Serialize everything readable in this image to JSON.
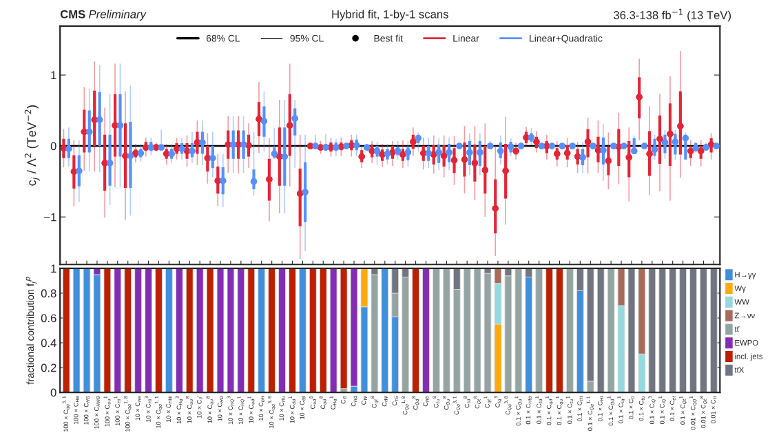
{
  "chart_data": [
    {
      "type": "scatter",
      "title": "Hybrid fit, 1-by-1 scans",
      "ylabel": "c$_{j}$ / Λ$^{2}$ (TeV$^{−2}$)",
      "annotations": [
        "68% CL",
        "95% CL",
        "Best fit",
        "CMS",
        "Preliminary",
        "36.3-138 fb$^{−1}$ (13 TeV)"
      ],
      "categories": [
        null,
        null,
        null,
        null,
        null,
        null,
        null,
        null,
        null,
        null,
        null,
        null,
        null,
        null,
        null,
        null,
        null,
        null,
        null,
        null,
        null,
        null,
        null,
        null,
        null,
        null,
        null,
        null,
        null,
        null,
        null,
        null,
        null,
        null,
        null,
        null,
        null,
        null,
        null,
        null,
        null,
        null,
        null,
        null,
        null,
        null,
        null,
        null,
        null,
        null,
        null,
        null,
        null,
        null,
        null,
        null,
        null,
        null,
        null,
        null,
        null,
        null,
        null,
        null
      ],
      "ylim": [
        -1.67,
        1.69
      ],
      "yticks": [
        {
          "value": -1,
          "label": "−1"
        },
        0,
        1
      ],
      "tick_labels": "y",
      "legend": "top",
      "marker": "circle",
      "ref_lines": [
        {
          "axis": "y",
          "value": 0,
          "color": "#000000"
        }
      ],
      "series": [
        {
          "color": "#e42536",
          "values": [
            -0.03,
            -0.36,
            0.2,
            0.37,
            -0.24,
            0.29,
            -0.14,
            -0.1,
            -0.02,
            -0.02,
            -0.11,
            -0.04,
            -0.07,
            0.05,
            -0.17,
            -0.49,
            0.02,
            0.02,
            0.01,
            0.38,
            -0.47,
            -0.15,
            0.29,
            -0.67,
            0.0,
            -0.02,
            -0.02,
            -0.01,
            0.01,
            -0.15,
            -0.07,
            -0.12,
            -0.09,
            -0.12,
            0.06,
            -0.1,
            -0.12,
            -0.14,
            -0.2,
            -0.19,
            -0.24,
            -0.34,
            -0.88,
            -0.35,
            -0.07,
            0.12,
            0.06,
            0.0,
            -0.11,
            -0.1,
            -0.15,
            0.06,
            -0.06,
            -0.21,
            -0.01,
            -0.16,
            0.69,
            -0.11,
            0.1,
            0.17,
            0.28,
            -0.07,
            -0.07,
            0.02
          ],
          "errors": [
            [
              -0.3,
              0.24
            ],
            [
              -0.85,
              0.08
            ],
            [
              -0.35,
              0.83
            ],
            [
              -0.36,
              1.19
            ],
            [
              -1.01,
              0.54
            ],
            [
              -0.58,
              1.16
            ],
            [
              -1.04,
              0.77
            ],
            [
              -0.23,
              0.03
            ],
            [
              -0.15,
              0.12
            ],
            [
              -0.08,
              0.05
            ],
            [
              -0.26,
              0.03
            ],
            [
              -0.19,
              0.11
            ],
            [
              -0.29,
              0.15
            ],
            [
              -0.27,
              0.36
            ],
            [
              -0.53,
              0.18
            ],
            [
              -0.85,
              -0.11
            ],
            [
              -0.38,
              0.42
            ],
            [
              -0.39,
              0.42
            ],
            [
              -0.31,
              0.32
            ],
            [
              -0.1,
              0.9
            ],
            [
              -1.06,
              0.11
            ],
            [
              -0.95,
              0.65
            ],
            [
              -0.57,
              1.16
            ],
            [
              -1.59,
              0.16
            ],
            [
              -0.04,
              0.04
            ],
            [
              -0.11,
              0.07
            ],
            [
              -0.15,
              0.11
            ],
            [
              -0.14,
              0.12
            ],
            [
              -0.15,
              0.16
            ],
            [
              -0.31,
              0.0
            ],
            [
              -0.24,
              0.07
            ],
            [
              -0.3,
              0.03
            ],
            [
              -0.28,
              0.07
            ],
            [
              -0.31,
              0.08
            ],
            [
              -0.14,
              0.26
            ],
            [
              -0.33,
              0.12
            ],
            [
              -0.39,
              0.15
            ],
            [
              -0.44,
              0.15
            ],
            [
              -0.55,
              0.14
            ],
            [
              -0.67,
              0.28
            ],
            [
              -0.76,
              0.28
            ],
            [
              -1.0,
              0.32
            ],
            [
              -1.55,
              0.0
            ],
            [
              -1.11,
              0.41
            ],
            [
              -0.19,
              0.05
            ],
            [
              0.0,
              0.27
            ],
            [
              -0.09,
              0.21
            ],
            [
              -0.19,
              0.16
            ],
            [
              -0.29,
              0.07
            ],
            [
              -0.3,
              0.11
            ],
            [
              -0.38,
              0.06
            ],
            [
              -0.39,
              0.4
            ],
            [
              -0.38,
              0.36
            ],
            [
              -0.61,
              0.19
            ],
            [
              -0.54,
              0.47
            ],
            [
              -0.78,
              0.26
            ],
            [
              0.08,
              1.23
            ],
            [
              -0.69,
              0.56
            ],
            [
              -0.64,
              0.73
            ],
            [
              -0.77,
              0.98
            ],
            [
              -0.45,
              1.34
            ],
            [
              -0.28,
              0.08
            ],
            [
              -0.29,
              0.08
            ],
            [
              -0.19,
              0.18
            ]
          ]
        },
        {
          "name": "Linear",
          "color": "#e42536",
          "values": [
            -0.03,
            -0.36,
            0.2,
            0.37,
            -0.24,
            0.29,
            -0.14,
            -0.1,
            -0.02,
            -0.02,
            -0.11,
            -0.04,
            -0.07,
            0.05,
            -0.17,
            -0.49,
            0.02,
            0.02,
            0.01,
            0.38,
            -0.47,
            -0.15,
            0.29,
            -0.67,
            0.0,
            -0.02,
            -0.02,
            -0.01,
            0.01,
            -0.15,
            -0.07,
            -0.12,
            -0.09,
            -0.12,
            0.06,
            -0.1,
            -0.12,
            -0.14,
            -0.2,
            -0.19,
            -0.24,
            -0.34,
            -0.88,
            -0.35,
            -0.07,
            0.12,
            0.06,
            0.0,
            -0.11,
            -0.1,
            -0.15,
            0.06,
            -0.06,
            -0.21,
            -0.01,
            -0.16,
            0.69,
            -0.11,
            0.1,
            0.17,
            0.28,
            -0.07,
            -0.07,
            0.02
          ],
          "errors": [
            [
              -0.17,
              0.1
            ],
            [
              -0.6,
              -0.13
            ],
            [
              -0.09,
              0.51
            ],
            [
              0.0,
              0.78
            ],
            [
              -0.63,
              0.16
            ],
            [
              -0.15,
              0.73
            ],
            [
              -0.59,
              0.32
            ],
            [
              -0.16,
              -0.05
            ],
            [
              -0.07,
              0.06
            ],
            [
              -0.04,
              0.01
            ],
            [
              -0.18,
              -0.04
            ],
            [
              -0.11,
              0.04
            ],
            [
              -0.18,
              0.04
            ],
            [
              -0.11,
              0.2
            ],
            [
              -0.36,
              0.0
            ],
            [
              -0.67,
              -0.29
            ],
            [
              -0.18,
              0.22
            ],
            [
              -0.18,
              0.22
            ],
            [
              -0.15,
              0.16
            ],
            [
              0.14,
              0.62
            ],
            [
              -0.77,
              -0.18
            ],
            [
              -0.56,
              0.26
            ],
            [
              -0.14,
              0.73
            ],
            [
              -1.13,
              -0.32
            ],
            [
              -0.03,
              0.03
            ],
            [
              -0.05,
              0.02
            ],
            [
              -0.08,
              0.05
            ],
            [
              -0.06,
              0.05
            ],
            [
              -0.06,
              0.08
            ],
            [
              -0.23,
              -0.06
            ],
            [
              -0.16,
              0.02
            ],
            [
              -0.21,
              -0.05
            ],
            [
              -0.18,
              0.0
            ],
            [
              -0.21,
              -0.04
            ],
            [
              -0.04,
              0.16
            ],
            [
              -0.21,
              0.0
            ],
            [
              -0.26,
              0.01
            ],
            [
              -0.29,
              0.01
            ],
            [
              -0.38,
              -0.03
            ],
            [
              -0.43,
              0.05
            ],
            [
              -0.5,
              0.02
            ],
            [
              -0.67,
              0.0
            ],
            [
              -1.23,
              -0.47
            ],
            [
              -0.74,
              0.03
            ],
            [
              -0.12,
              -0.03
            ],
            [
              0.04,
              0.2
            ],
            [
              -0.03,
              0.13
            ],
            [
              -0.1,
              0.07
            ],
            [
              -0.19,
              -0.03
            ],
            [
              -0.19,
              0.01
            ],
            [
              -0.26,
              -0.04
            ],
            [
              -0.16,
              0.24
            ],
            [
              -0.23,
              0.13
            ],
            [
              -0.41,
              -0.01
            ],
            [
              -0.28,
              0.24
            ],
            [
              -0.44,
              0.07
            ],
            [
              0.39,
              0.97
            ],
            [
              -0.42,
              0.21
            ],
            [
              -0.25,
              0.43
            ],
            [
              -0.28,
              0.6
            ],
            [
              -0.12,
              0.77
            ],
            [
              -0.17,
              -0.02
            ],
            [
              -0.18,
              0.0
            ],
            [
              -0.09,
              0.11
            ]
          ]
        },
        {
          "color": "#5790fc",
          "values": [
            -0.04,
            -0.35,
            0.2,
            0.37,
            -0.24,
            0.29,
            -0.14,
            -0.1,
            -0.02,
            -0.02,
            -0.11,
            -0.04,
            -0.07,
            0.05,
            -0.17,
            -0.49,
            0.02,
            0.02,
            -0.5,
            0.35,
            -0.11,
            -0.15,
            0.39,
            -0.65,
            0.0,
            -0.02,
            -0.02,
            0.0,
            0.01,
            -0.02,
            -0.07,
            -0.11,
            -0.07,
            -0.09,
            0.11,
            -0.1,
            -0.09,
            -0.09,
            0.0,
            -0.09,
            -0.09,
            0.0,
            -0.07,
            -0.01,
            0.0,
            0.12,
            0.0,
            0.0,
            0.0,
            0.0,
            -0.16,
            0.0,
            -0.06,
            0.0,
            0.0,
            -0.07,
            0.0,
            -0.05,
            0.05,
            0.06,
            0.11,
            -0.03,
            -0.02,
            0.0
          ],
          "errors": [
            [
              -0.29,
              0.26
            ],
            [
              -0.79,
              0.08
            ],
            [
              -0.36,
              0.81
            ],
            [
              -0.37,
              1.14
            ],
            [
              -0.83,
              0.73
            ],
            [
              -0.58,
              1.16
            ],
            [
              -0.98,
              0.85
            ],
            [
              -0.22,
              0.03
            ],
            [
              -0.13,
              0.12
            ],
            [
              -0.05,
              0.23
            ],
            [
              -0.24,
              0.03
            ],
            [
              -0.19,
              0.11
            ],
            [
              -0.24,
              0.2
            ],
            [
              -0.27,
              0.36
            ],
            [
              -0.44,
              0.2
            ],
            [
              -0.86,
              -0.11
            ],
            [
              -0.38,
              0.42
            ],
            [
              -0.38,
              0.42
            ],
            [
              -0.7,
              0.2
            ],
            [
              -0.08,
              0.77
            ],
            [
              -0.18,
              0.25
            ],
            [
              -0.95,
              0.65
            ],
            [
              -0.31,
              0.65
            ],
            [
              -1.48,
              0.16
            ],
            [
              -0.05,
              0.16
            ],
            [
              -0.07,
              0.17
            ],
            [
              -0.14,
              0.1
            ],
            [
              -0.03,
              0.03
            ],
            [
              -0.14,
              0.16
            ],
            [
              -0.06,
              0.03
            ],
            [
              -0.26,
              0.06
            ],
            [
              -0.26,
              0.03
            ],
            [
              -0.19,
              0.07
            ],
            [
              -0.29,
              0.07
            ],
            [
              -0.08,
              0.19
            ],
            [
              -0.31,
              0.12
            ],
            [
              -0.34,
              0.11
            ],
            [
              -0.34,
              0.12
            ],
            [
              -0.04,
              0.04
            ],
            [
              -0.41,
              0.18
            ],
            [
              -0.41,
              0.18
            ],
            [
              -0.04,
              0.07
            ],
            [
              -0.26,
              0.15
            ],
            [
              -0.14,
              0.11
            ],
            [
              -0.04,
              0.03
            ],
            [
              0.01,
              0.25
            ],
            [
              -0.03,
              0.03
            ],
            [
              -0.03,
              0.03
            ],
            [
              -0.03,
              0.03
            ],
            [
              -0.03,
              0.03
            ],
            [
              -0.38,
              0.06
            ],
            [
              -0.03,
              0.03
            ],
            [
              -0.49,
              0.31
            ],
            [
              -0.03,
              0.03
            ],
            [
              -0.03,
              0.03
            ],
            [
              -0.11,
              0.15
            ],
            [
              -0.03,
              0.03
            ],
            [
              -0.19,
              0.16
            ],
            [
              -0.18,
              0.23
            ],
            [
              -0.19,
              0.23
            ],
            [
              -0.19,
              0.19
            ],
            [
              -0.09,
              0.06
            ],
            [
              -0.07,
              0.05
            ],
            [
              -0.04,
              0.04
            ]
          ]
        },
        {
          "name": "Linear+Quadratic",
          "color": "#5790fc",
          "values": [
            -0.04,
            -0.35,
            0.2,
            0.37,
            -0.24,
            0.29,
            -0.14,
            -0.1,
            -0.02,
            -0.02,
            -0.11,
            -0.04,
            -0.07,
            0.05,
            -0.17,
            -0.49,
            0.02,
            0.02,
            -0.5,
            0.35,
            -0.11,
            -0.15,
            0.39,
            -0.65,
            0.0,
            -0.02,
            -0.02,
            0.0,
            0.01,
            -0.02,
            -0.07,
            -0.11,
            -0.07,
            -0.09,
            0.11,
            -0.1,
            -0.09,
            -0.09,
            0.0,
            -0.09,
            -0.09,
            0.0,
            -0.07,
            -0.01,
            0.0,
            0.12,
            0.0,
            0.0,
            0.0,
            0.0,
            -0.16,
            0.0,
            -0.06,
            0.0,
            0.0,
            -0.07,
            0.0,
            -0.05,
            0.05,
            0.06,
            0.11,
            -0.03,
            -0.02,
            0.0
          ],
          "errors": [
            [
              -0.17,
              0.1
            ],
            [
              -0.57,
              -0.13
            ],
            [
              -0.09,
              0.5
            ],
            [
              0.0,
              0.76
            ],
            [
              -0.56,
              0.16
            ],
            [
              -0.15,
              0.73
            ],
            [
              -0.59,
              0.34
            ],
            [
              -0.16,
              -0.04
            ],
            [
              -0.07,
              0.06
            ],
            [
              -0.05,
              0.02
            ],
            [
              -0.18,
              -0.04
            ],
            [
              -0.11,
              0.04
            ],
            [
              -0.16,
              0.04
            ],
            [
              -0.11,
              0.2
            ],
            [
              -0.31,
              0.0
            ],
            [
              -0.68,
              -0.3
            ],
            [
              -0.18,
              0.22
            ],
            [
              -0.18,
              0.22
            ],
            [
              -0.61,
              -0.33
            ],
            [
              0.13,
              0.56
            ],
            [
              -0.17,
              -0.02
            ],
            [
              -0.56,
              0.26
            ],
            [
              0.15,
              0.53
            ],
            [
              -1.07,
              -0.23
            ],
            [
              -0.03,
              0.03
            ],
            [
              -0.06,
              0.03
            ],
            [
              -0.07,
              0.05
            ],
            [
              -0.02,
              0.02
            ],
            [
              -0.06,
              0.09
            ],
            [
              -0.05,
              0.0
            ],
            [
              -0.15,
              0.0
            ],
            [
              -0.19,
              -0.04
            ],
            [
              -0.13,
              -0.01
            ],
            [
              -0.2,
              -0.02
            ],
            [
              0.04,
              0.16
            ],
            [
              -0.21,
              0.0
            ],
            [
              -0.24,
              0.02
            ],
            [
              -0.23,
              0.03
            ],
            [
              -0.02,
              0.02
            ],
            [
              -0.27,
              0.07
            ],
            [
              -0.28,
              0.07
            ],
            [
              -0.03,
              0.03
            ],
            [
              -0.17,
              0.05
            ],
            [
              -0.09,
              0.06
            ],
            [
              -0.02,
              0.02
            ],
            [
              0.06,
              0.18
            ],
            [
              -0.01,
              0.01
            ],
            [
              -0.01,
              0.01
            ],
            [
              -0.01,
              0.01
            ],
            [
              -0.01,
              0.01
            ],
            [
              -0.27,
              -0.04
            ],
            [
              -0.01,
              0.01
            ],
            [
              -0.26,
              0.12
            ],
            [
              -0.01,
              0.01
            ],
            [
              -0.01,
              0.01
            ],
            [
              -0.09,
              0.11
            ],
            [
              -0.01,
              0.01
            ],
            [
              -0.14,
              0.1
            ],
            [
              -0.1,
              0.16
            ],
            [
              -0.12,
              0.17
            ],
            [
              -0.19,
              0.16
            ],
            [
              -0.07,
              0.04
            ],
            [
              -0.05,
              0.03
            ],
            [
              -0.02,
              0.02
            ]
          ]
        }
      ]
    },
    {
      "type": "bar",
      "stacked": true,
      "ylabel": "fractional contribution f$_{j}$$^{p}$",
      "categories": [
        "100 × C$_{qq}$$^{3,1}$",
        "100 × C$_{HB}$",
        "100 × C$_{HG}$",
        "100 × C$_{HWB}$",
        "100 × C$_{uu}$$^{1}$",
        "100 × C$_{Hl}$$^{1}$",
        "100 × C$_{qq}$$^{1,8}$",
        "10 × C$_{He}$",
        "10 × C$_{Hl}$$^{3}$",
        "10 × C$_{qq}$$^{1,1}$",
        "10 × C$_{HW}$",
        "10 × C$_{Hq}$$^{3}$",
        "10 × C$_{uu}$$^{8}$",
        "10 × C$_{ll}$′",
        "10 × C$_{qu}$$^{8}$",
        "10 × C$_{HD}$",
        "10 × C$_{HQ}$$^{3}$",
        "10 × C$_{HQ}$$^{1}$",
        "10 × C$_{ud}$$^{1}$",
        "10 × C$_{bH}$",
        "10 × C$_{qq}$$^{3,8}$",
        "10 × C$_{Hu}$",
        "10 × C$_{dd}$$^{1}$",
        "10 × C$_{tB}$",
        "C$_{ud}$$^{8}$",
        "C$_{qd}$$^{8}$",
        "C$_{Hq}$$^{1}$",
        "C$_{G}$",
        "C$_{Hd}$",
        "C$_{W}$",
        "C$_{qt}$$^{8}$",
        "C$_{tW}$",
        "C$_{tG}$",
        "C$_{Qq}$$^{1,8}$",
        "C$_{Qd}$$^{8}$",
        "C$_{Hb}$",
        "C$_{tu}$$^{8}$",
        "C$_{Qu}$$^{8}$",
        "C$_{Qq}$$^{3,1}$",
        "C$_{td}$$^{8}$",
        "C$_{Qt}$$^{8}$",
        "C$_{qt}$$^{1}$",
        "C$_{lq}$$^{3}$",
        "C$_{Qq}$$^{3,8}$",
        "0.1 × C$_{Qu}$$^{1}$",
        "0.1 × C$_{Htb}$",
        "0.1 × C$_{td}$$^{1}$",
        "0.1 × C$_{qd}$$^{1}$",
        "0.1 × C$_{qu}$$^{1}$",
        "0.1 × C$_{tu}$$^{1}$",
        "0.1 × C$_{tH}$",
        "0.1 × C$_{Qq}$$^{1,1}$",
        "0.1 × C$_{Ht}$",
        "0.1 × C$_{Qd}$$^{1}$",
        "0.1 × C$_{lq}$$^{1}$",
        "0.1 × C$_{tl}$",
        "0.1 × C$_{tu}$",
        "0.1 × C$_{lQ}$$^{3}$",
        "0.1 × C$_{lQ}$$^{1}$",
        "0.1 × C$_{et}$",
        "0.1 × C$_{Qt}$$^{1}$",
        "0.01 × C$_{QQ}$$^{1}$",
        "0.01 × C$_{Qt}$$^{8}$",
        "0.01 × C$_{tt}$"
      ],
      "ylim": [
        0,
        1
      ],
      "yticks": [
        0,
        0.2,
        0.4,
        0.6,
        0.8,
        1
      ],
      "legend": "right",
      "series": [
        {
          "name": "H→γγ",
          "color": "#3f8fdc",
          "values": [
            null,
            1,
            1,
            0.95,
            null,
            null,
            null,
            null,
            null,
            null,
            1,
            null,
            null,
            null,
            null,
            null,
            null,
            null,
            null,
            1,
            null,
            null,
            null,
            1,
            null,
            null,
            null,
            null,
            0.05,
            0.69,
            null,
            1,
            0.61,
            null,
            null,
            null,
            null,
            null,
            null,
            null,
            null,
            null,
            null,
            null,
            null,
            0.93,
            null,
            null,
            null,
            null,
            0.82,
            null,
            null,
            null,
            null,
            null,
            null,
            null,
            null,
            null,
            null,
            null,
            null,
            null
          ]
        },
        {
          "name": "Wγ",
          "color": "#ffa90e",
          "values": [
            null,
            null,
            null,
            null,
            null,
            null,
            null,
            null,
            null,
            null,
            null,
            null,
            null,
            null,
            null,
            null,
            null,
            null,
            null,
            null,
            null,
            null,
            null,
            null,
            null,
            null,
            null,
            null,
            null,
            0.31,
            null,
            null,
            null,
            null,
            null,
            null,
            null,
            null,
            null,
            null,
            null,
            null,
            0.55,
            null,
            null,
            null,
            null,
            null,
            null,
            null,
            null,
            null,
            null,
            null,
            null,
            null,
            null,
            null,
            null,
            null,
            null,
            null,
            null,
            null
          ]
        },
        {
          "name": "WW",
          "color": "#94d9de",
          "values": [
            null,
            null,
            null,
            null,
            null,
            null,
            null,
            null,
            null,
            null,
            null,
            null,
            null,
            null,
            null,
            null,
            null,
            null,
            null,
            null,
            null,
            null,
            null,
            null,
            null,
            null,
            null,
            null,
            null,
            null,
            null,
            null,
            null,
            null,
            null,
            null,
            null,
            null,
            null,
            null,
            null,
            null,
            0.33,
            null,
            null,
            null,
            null,
            null,
            null,
            null,
            null,
            null,
            null,
            null,
            0.7,
            null,
            0.31,
            null,
            null,
            null,
            null,
            null,
            null,
            null
          ]
        },
        {
          "name": "Z→νν",
          "color": "#a96b59",
          "values": [
            null,
            null,
            null,
            null,
            null,
            null,
            null,
            null,
            null,
            null,
            null,
            null,
            null,
            null,
            null,
            null,
            null,
            null,
            null,
            null,
            null,
            null,
            null,
            null,
            null,
            null,
            null,
            null,
            null,
            null,
            null,
            null,
            null,
            null,
            null,
            null,
            null,
            null,
            null,
            null,
            null,
            null,
            0.12,
            null,
            null,
            null,
            null,
            null,
            null,
            null,
            null,
            null,
            null,
            null,
            0.3,
            null,
            0.69,
            null,
            null,
            null,
            null,
            null,
            null,
            null
          ]
        },
        {
          "name": "tt̄",
          "color": "#94a4a2",
          "values": [
            null,
            null,
            null,
            null,
            null,
            null,
            null,
            null,
            null,
            null,
            null,
            null,
            null,
            null,
            null,
            null,
            null,
            null,
            null,
            null,
            null,
            null,
            null,
            null,
            null,
            null,
            null,
            0.03,
            null,
            null,
            0.95,
            null,
            0.19,
            0.93,
            null,
            null,
            1,
            1,
            0.83,
            1,
            1,
            0.96,
            null,
            0.94,
            1,
            null,
            1,
            null,
            null,
            1,
            null,
            0.09,
            null,
            1,
            null,
            null,
            null,
            null,
            null,
            null,
            null,
            null,
            null,
            null
          ]
        },
        {
          "name": "EWPO",
          "color": "#832db6",
          "values": [
            null,
            null,
            null,
            0.05,
            null,
            1,
            null,
            1,
            1,
            null,
            null,
            1,
            null,
            1,
            null,
            1,
            1,
            1,
            null,
            null,
            null,
            1,
            null,
            null,
            null,
            null,
            1,
            null,
            0.95,
            null,
            null,
            null,
            null,
            null,
            null,
            1,
            null,
            null,
            null,
            null,
            null,
            null,
            null,
            null,
            null,
            null,
            null,
            null,
            null,
            null,
            null,
            null,
            null,
            null,
            null,
            null,
            null,
            null,
            null,
            null,
            null,
            null,
            null,
            null
          ]
        },
        {
          "name": "incl. jets",
          "color": "#bd1f01",
          "values": [
            1,
            null,
            null,
            null,
            1,
            null,
            1,
            null,
            null,
            1,
            null,
            null,
            1,
            null,
            1,
            null,
            null,
            null,
            1,
            null,
            1,
            null,
            1,
            null,
            1,
            1,
            null,
            0.97,
            null,
            null,
            null,
            null,
            null,
            null,
            1,
            null,
            null,
            null,
            null,
            null,
            null,
            null,
            null,
            null,
            null,
            null,
            null,
            1,
            1,
            null,
            null,
            null,
            null,
            null,
            null,
            null,
            null,
            null,
            null,
            null,
            null,
            null,
            null,
            null
          ]
        },
        {
          "name": "tt̄X",
          "color": "#717581",
          "values": [
            null,
            null,
            null,
            null,
            null,
            null,
            null,
            null,
            null,
            null,
            null,
            null,
            null,
            null,
            null,
            null,
            null,
            null,
            null,
            null,
            null,
            null,
            null,
            null,
            null,
            null,
            null,
            null,
            null,
            null,
            0.05,
            null,
            0.2,
            0.07,
            null,
            null,
            null,
            null,
            0.17,
            null,
            null,
            0.04,
            null,
            0.06,
            null,
            0.07,
            null,
            null,
            null,
            null,
            0.18,
            0.91,
            1,
            null,
            null,
            1,
            null,
            1,
            1,
            1,
            1,
            1,
            1,
            1
          ]
        }
      ]
    }
  ]
}
